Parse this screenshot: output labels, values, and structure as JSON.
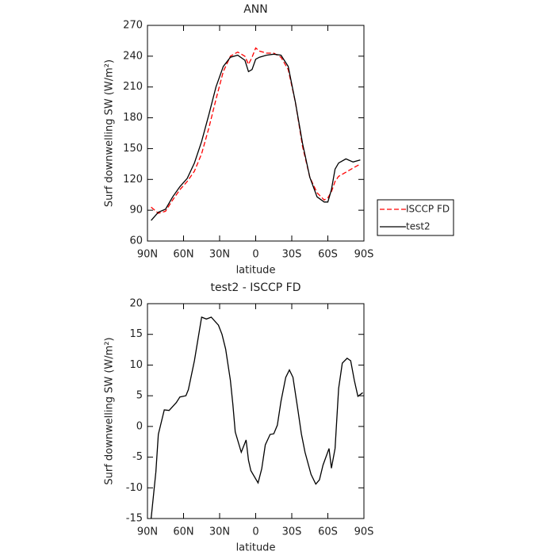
{
  "chart_data": [
    {
      "type": "line",
      "title": "ANN",
      "x_label": "latitude",
      "y_label": "Surf downwelling SW (W/m²)",
      "x": [
        87,
        81,
        75,
        69,
        63,
        57,
        51,
        45,
        39,
        33,
        27,
        21,
        15,
        9,
        6,
        3,
        0,
        -3,
        -9,
        -15,
        -21,
        -27,
        -33,
        -39,
        -45,
        -51,
        -57,
        -60,
        -63,
        -66,
        -69,
        -75,
        -81,
        -87
      ],
      "series": [
        {
          "name": "ISCCP FD",
          "color": "#ff0000",
          "linestyle": "dashed",
          "values": [
            93,
            87,
            89,
            100,
            110,
            118,
            128,
            145,
            170,
            198,
            225,
            240,
            244,
            240,
            232,
            239,
            248,
            245,
            243,
            243,
            239,
            227,
            195,
            152,
            122,
            107,
            100,
            102,
            108,
            118,
            123,
            127,
            131,
            135
          ]
        },
        {
          "name": "test2",
          "color": "#000000",
          "linestyle": "solid",
          "values": [
            80,
            88,
            91,
            103,
            113,
            121,
            136,
            157,
            183,
            210,
            230,
            239,
            241,
            236,
            225,
            227,
            237,
            239,
            241,
            242,
            241,
            230,
            195,
            155,
            122,
            103,
            98,
            98,
            110,
            130,
            136,
            140,
            137,
            139
          ]
        }
      ],
      "xlim": [
        90,
        -90
      ],
      "xticks": [
        {
          "value": 90,
          "label": "90N"
        },
        {
          "value": 60,
          "label": "60N"
        },
        {
          "value": 30,
          "label": "30N"
        },
        0,
        {
          "value": -30,
          "label": "30S"
        },
        {
          "value": -60,
          "label": "60S"
        },
        {
          "value": -90,
          "label": "90S"
        }
      ],
      "ylim": [
        60,
        270
      ],
      "yticks": [
        60,
        90,
        120,
        150,
        180,
        210,
        240,
        270
      ],
      "legend": "right"
    },
    {
      "type": "line",
      "title": "test2 - ISCCP FD",
      "x_label": "latitude",
      "y_label": "Surf downwelling SW (W/m²)",
      "x": [
        87,
        83,
        81,
        76,
        72,
        66,
        63,
        58,
        56,
        51,
        45,
        41,
        37,
        31,
        28,
        25,
        21,
        19,
        17,
        12,
        8,
        6,
        4,
        -2,
        -5,
        -8,
        -12,
        -15,
        -18,
        -21,
        -25,
        -28,
        -31,
        -35,
        -38,
        -41,
        -46,
        -50,
        -53,
        -56,
        -61,
        -63,
        -66,
        -69,
        -72,
        -76,
        -79,
        -82,
        -85,
        -89
      ],
      "values": [
        -15,
        -7.4,
        -1.3,
        2.7,
        2.6,
        3.9,
        4.8,
        5,
        6,
        10.7,
        17.8,
        17.5,
        17.8,
        16.5,
        15,
        12.6,
        7.5,
        3.6,
        -0.9,
        -4.2,
        -2.2,
        -5.5,
        -7.2,
        -9.2,
        -6.9,
        -3,
        -1.3,
        -1.2,
        0.2,
        4.1,
        8,
        9.2,
        8,
        2.8,
        -1.2,
        -4.2,
        -7.8,
        -9.4,
        -8.7,
        -6.3,
        -3.6,
        -6.8,
        -3.6,
        6.2,
        10.3,
        11.1,
        10.7,
        7.5,
        4.9,
        5.5
      ],
      "color": "#000000",
      "xlim": [
        90,
        -90
      ],
      "xticks": [
        {
          "value": 90,
          "label": "90N"
        },
        {
          "value": 60,
          "label": "60N"
        },
        {
          "value": 30,
          "label": "30N"
        },
        0,
        {
          "value": -30,
          "label": "30S"
        },
        {
          "value": -60,
          "label": "60S"
        },
        {
          "value": -90,
          "label": "90S"
        }
      ],
      "ylim": [
        -15,
        20
      ],
      "yticks": [
        -15,
        -10,
        -5,
        0,
        5,
        10,
        15,
        20
      ]
    }
  ]
}
